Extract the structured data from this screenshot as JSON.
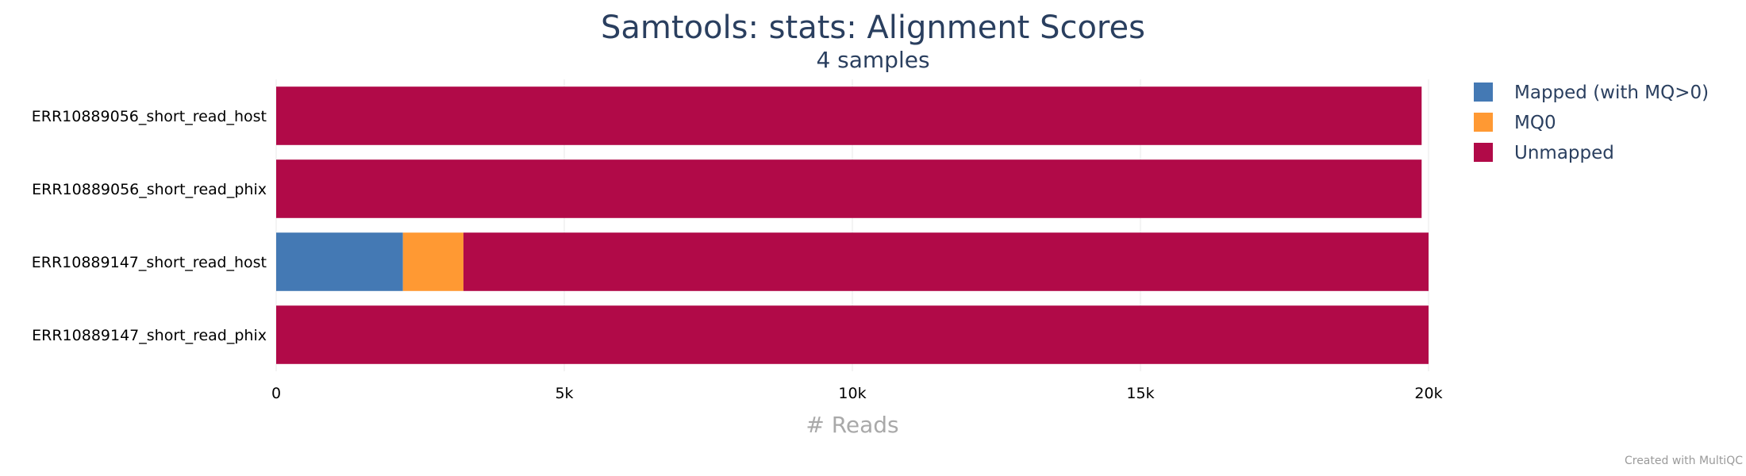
{
  "chart_data": {
    "type": "bar",
    "orientation": "horizontal",
    "stacked": true,
    "title": "Samtools: stats: Alignment Scores",
    "subtitle": "4 samples",
    "xlabel": "# Reads",
    "ylabel": "",
    "xlim": [
      0,
      20000
    ],
    "x_ticks": [
      0,
      5000,
      10000,
      15000,
      20000
    ],
    "x_tick_labels": [
      "0",
      "5k",
      "10k",
      "15k",
      "20k"
    ],
    "categories": [
      "ERR10889056_short_read_host",
      "ERR10889056_short_read_phix",
      "ERR10889147_short_read_host",
      "ERR10889147_short_read_phix"
    ],
    "series": [
      {
        "name": "Mapped (with MQ>0)",
        "color": "#4479b4",
        "values": [
          0,
          0,
          2200,
          0
        ]
      },
      {
        "name": "MQ0",
        "color": "#ff9933",
        "values": [
          0,
          0,
          1050,
          0
        ]
      },
      {
        "name": "Unmapped",
        "color": "#b10a48",
        "values": [
          19880,
          19880,
          16750,
          20000
        ]
      }
    ],
    "grid": true,
    "legend_position": "top-right"
  },
  "credit": "Created with MultiQC"
}
